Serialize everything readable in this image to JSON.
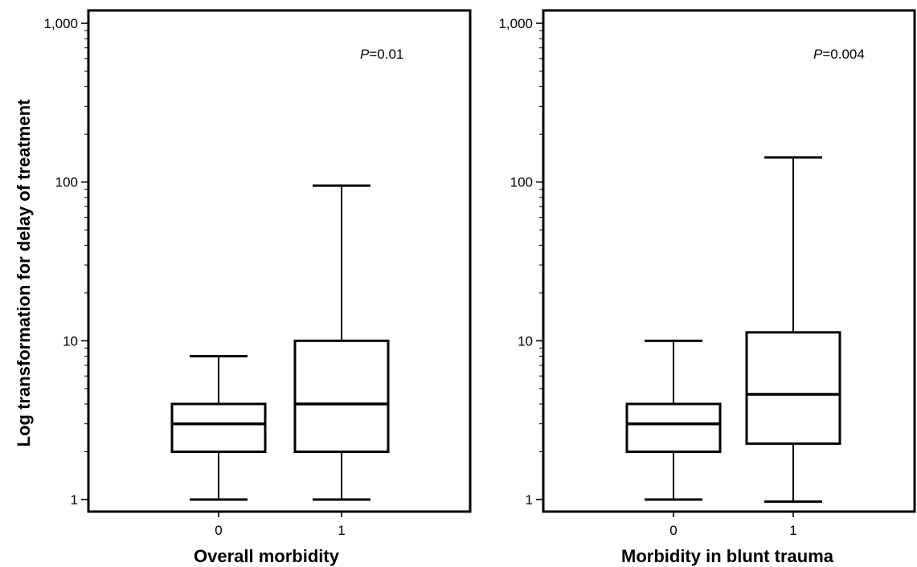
{
  "shared": {
    "ylabel": "Log transformation for delay of treatment"
  },
  "chart_data": [
    {
      "type": "box",
      "xlabel": "Overall morbidity",
      "annotation_p": "P",
      "annotation_val": "=0.01",
      "y_scale": "log",
      "ylim": [
        1,
        1000
      ],
      "yticks": [
        1,
        10,
        100,
        1000
      ],
      "ytick_labels": [
        "1",
        "10",
        "100",
        "1,000"
      ],
      "categories": [
        "0",
        "1"
      ],
      "boxes": [
        {
          "category": "0",
          "whisker_low": 1,
          "q1": 2,
          "median": 3,
          "q3": 4,
          "whisker_high": 8
        },
        {
          "category": "1",
          "whisker_low": 1,
          "q1": 2,
          "median": 4,
          "q3": 10,
          "whisker_high": 95
        }
      ]
    },
    {
      "type": "box",
      "xlabel": "Morbidity in blunt trauma",
      "annotation_p": "P",
      "annotation_val": "=0.004",
      "y_scale": "log",
      "ylim": [
        1,
        1000
      ],
      "yticks": [
        1,
        10,
        100,
        1000
      ],
      "ytick_labels": [
        "1",
        "10",
        "100",
        "1,000"
      ],
      "categories": [
        "0",
        "1"
      ],
      "boxes": [
        {
          "category": "0",
          "whisker_low": 1,
          "q1": 2,
          "median": 3,
          "q3": 4,
          "whisker_high": 10
        },
        {
          "category": "1",
          "whisker_low": 0.97,
          "q1": 2.25,
          "median": 4.6,
          "q3": 11.3,
          "whisker_high": 143
        }
      ]
    }
  ]
}
